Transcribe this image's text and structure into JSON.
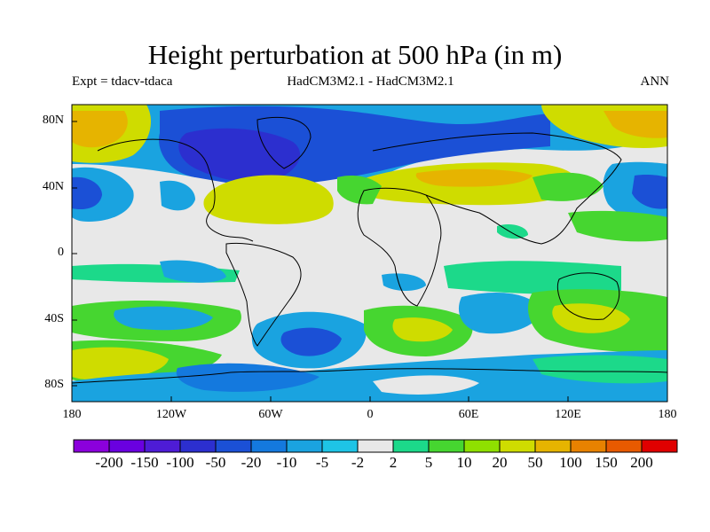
{
  "title": "Height perturbation at 500 hPa (in m)",
  "subtitle_left": "Expt = tdacv-tdaca",
  "subtitle_center": "HadCM3M2.1 - HadCM3M2.1",
  "subtitle_right": "ANN",
  "latitude_labels": [
    "80N",
    "40N",
    "0",
    "40S",
    "80S"
  ],
  "longitude_labels": [
    "180",
    "120W",
    "60W",
    "0",
    "60E",
    "120E",
    "180"
  ],
  "colorbar": {
    "labels": [
      "-200",
      "-150",
      "-100",
      "-50",
      "-20",
      "-10",
      "-5",
      "-2",
      "2",
      "5",
      "10",
      "20",
      "50",
      "100",
      "150",
      "200"
    ],
    "colors": [
      "#8b00dc",
      "#6a00e0",
      "#4e1cd6",
      "#2c2fcf",
      "#1b50d6",
      "#1479de",
      "#1aa3e0",
      "#1ec4e6",
      "#e8e8e8",
      "#1cd98a",
      "#46d630",
      "#8fe000",
      "#cfdc00",
      "#e6b400",
      "#e88200",
      "#e85a00",
      "#e00000"
    ]
  }
}
